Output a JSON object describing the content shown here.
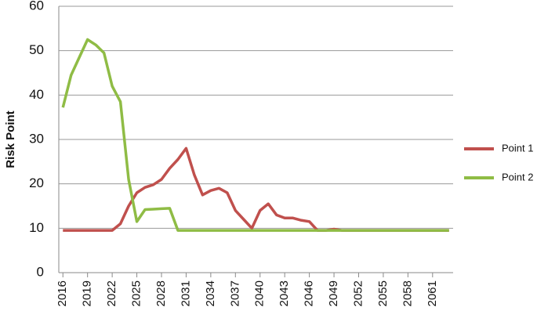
{
  "chart_data": {
    "type": "line",
    "y_label": "Risk Point",
    "x": [
      2016,
      2017,
      2018,
      2019,
      2020,
      2021,
      2022,
      2023,
      2024,
      2025,
      2026,
      2027,
      2028,
      2029,
      2030,
      2031,
      2032,
      2033,
      2034,
      2035,
      2036,
      2037,
      2038,
      2039,
      2040,
      2041,
      2042,
      2043,
      2044,
      2045,
      2046,
      2047,
      2048,
      2049,
      2050,
      2051,
      2052,
      2053,
      2054,
      2055,
      2056,
      2057,
      2058,
      2059,
      2060,
      2061,
      2062,
      2063
    ],
    "series": [
      {
        "name": "Point 1",
        "color": "#c0504d",
        "values": [
          9.5,
          9.5,
          9.5,
          9.5,
          9.5,
          9.5,
          9.5,
          11,
          15,
          18,
          19.2,
          19.8,
          21,
          23.5,
          25.5,
          28,
          22,
          17.5,
          18.5,
          19,
          18,
          14,
          12,
          10,
          14,
          15.5,
          13,
          12.3,
          12.3,
          11.8,
          11.5,
          9.5,
          9.5,
          9.8,
          9.5,
          9.5,
          9.5,
          9.5,
          9.5,
          9.5,
          9.5,
          9.5,
          9.5,
          9.5,
          9.5,
          9.5,
          9.5,
          9.5
        ]
      },
      {
        "name": "Point 2",
        "color": "#8fbc45",
        "values": [
          37.2,
          44.5,
          48.5,
          52.5,
          51.3,
          49.5,
          42,
          38.5,
          21,
          11.5,
          14.2,
          14.3,
          14.4,
          14.5,
          9.5,
          9.5,
          9.5,
          9.5,
          9.5,
          9.5,
          9.5,
          9.5,
          9.5,
          9.5,
          9.5,
          9.5,
          9.5,
          9.5,
          9.5,
          9.5,
          9.5,
          9.5,
          9.5,
          9.5,
          9.5,
          9.5,
          9.5,
          9.5,
          9.5,
          9.5,
          9.5,
          9.5,
          9.5,
          9.5,
          9.5,
          9.5,
          9.5,
          9.5
        ]
      }
    ],
    "xlim": [
      2015.5,
      2063.5
    ],
    "xticks": [
      2016,
      2019,
      2022,
      2025,
      2028,
      2031,
      2034,
      2037,
      2040,
      2043,
      2046,
      2049,
      2052,
      2055,
      2058,
      2061
    ],
    "ylim": [
      0,
      60
    ],
    "yticks": [
      0,
      10,
      20,
      30,
      40,
      50,
      60
    ],
    "grid": true,
    "legend": "right"
  }
}
